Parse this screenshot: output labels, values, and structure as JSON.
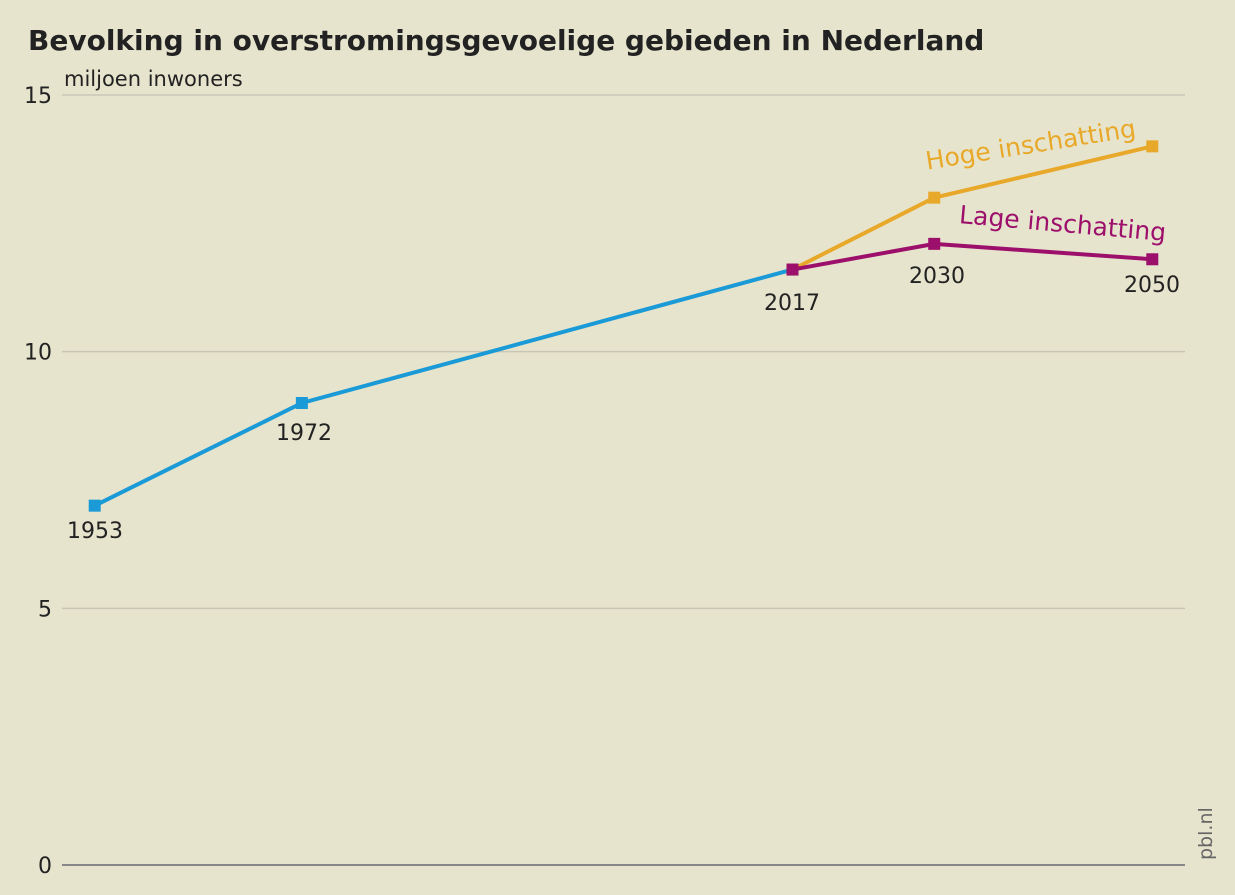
{
  "chart_data": {
    "type": "line",
    "title": "Bevolking in overstromingsgevoelige gebieden in Nederland",
    "y_axis_label": "miljoen inwoners",
    "source": "pbl.nl",
    "xlim": [
      1950,
      2053
    ],
    "ylim": [
      0,
      15
    ],
    "yticks": [
      0,
      5,
      10,
      15
    ],
    "grid": true,
    "series": [
      {
        "color": "#1a9ad6",
        "x": [
          1953,
          1972,
          2017
        ],
        "values": [
          7.0,
          9.0,
          11.6
        ]
      },
      {
        "name": "Hoge inschatting",
        "color": "#e8a92a",
        "x": [
          2017,
          2030,
          2050
        ],
        "values": [
          11.6,
          13.0,
          14.0
        ]
      },
      {
        "name": "Lage inschatting",
        "color": "#9c0f6b",
        "x": [
          2017,
          2030,
          2050
        ],
        "values": [
          11.6,
          12.1,
          11.8
        ]
      }
    ]
  }
}
